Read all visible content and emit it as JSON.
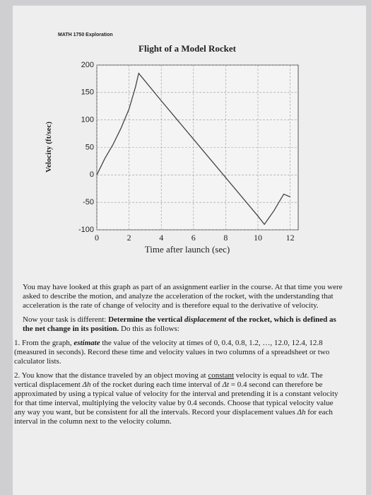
{
  "header": {
    "course": "MATH 1750 Exploration"
  },
  "chart_data": {
    "type": "line",
    "title": "Flight of a Model Rocket",
    "x_label": "Time after launch (sec)",
    "y_label": "Velocity (ft/sec)",
    "xlim": [
      0,
      12.5
    ],
    "ylim": [
      -100,
      200
    ],
    "xticks": [
      0,
      2,
      4,
      6,
      8,
      10,
      12
    ],
    "yticks": [
      -100,
      -50,
      0,
      50,
      100,
      150,
      200
    ],
    "grid": true,
    "series": [
      {
        "color": "#444444",
        "x": [
          0,
          0.5,
          1,
          1.5,
          2,
          2.4,
          2.6,
          4,
          6,
          8,
          10,
          10.4,
          11,
          11.6,
          12
        ],
        "values": [
          0,
          30,
          55,
          85,
          120,
          160,
          185,
          135,
          65,
          -5,
          -75,
          -90,
          -65,
          -35,
          -40
        ]
      }
    ]
  },
  "paragraphs": [
    [
      "You may have looked at this graph as part of an assignment earlier in the course. At that time you were asked to describe the motion, and analyze the acceleration of the rocket, with the understanding that acceleration is the rate of change of velocity and is therefore equal to the derivative of velocity."
    ],
    [
      "Now your task is different: ",
      "Determine the vertical ",
      "displacement",
      " of the rocket, which is defined as the net change in its position.",
      " Do this as follows:"
    ],
    [
      "1. From the graph, ",
      "estimate",
      " the value of the velocity at times of 0, 0.4, 0.8, 1.2, …, 12.0, 12.4, 12.8 (measured in seconds). Record these time and velocity values in two columns of a spreadsheet or two calculator lists."
    ],
    [
      "2. You know that the distance traveled by an object moving at ",
      "constant",
      " velocity is equal to ",
      "vΔt",
      ". The vertical displacement ",
      "Δh",
      " of the rocket during each time interval of ",
      "Δt",
      " = 0.4 second can therefore be approximated by using a typical value of velocity for the interval and pretending it is a constant velocity for that time interval, multiplying the velocity value by 0.4 seconds. Choose that typical velocity value any way you want, but be consistent for all the intervals. Record your displacement values ",
      "Δh",
      " for each interval in the column next to the velocity column."
    ]
  ]
}
